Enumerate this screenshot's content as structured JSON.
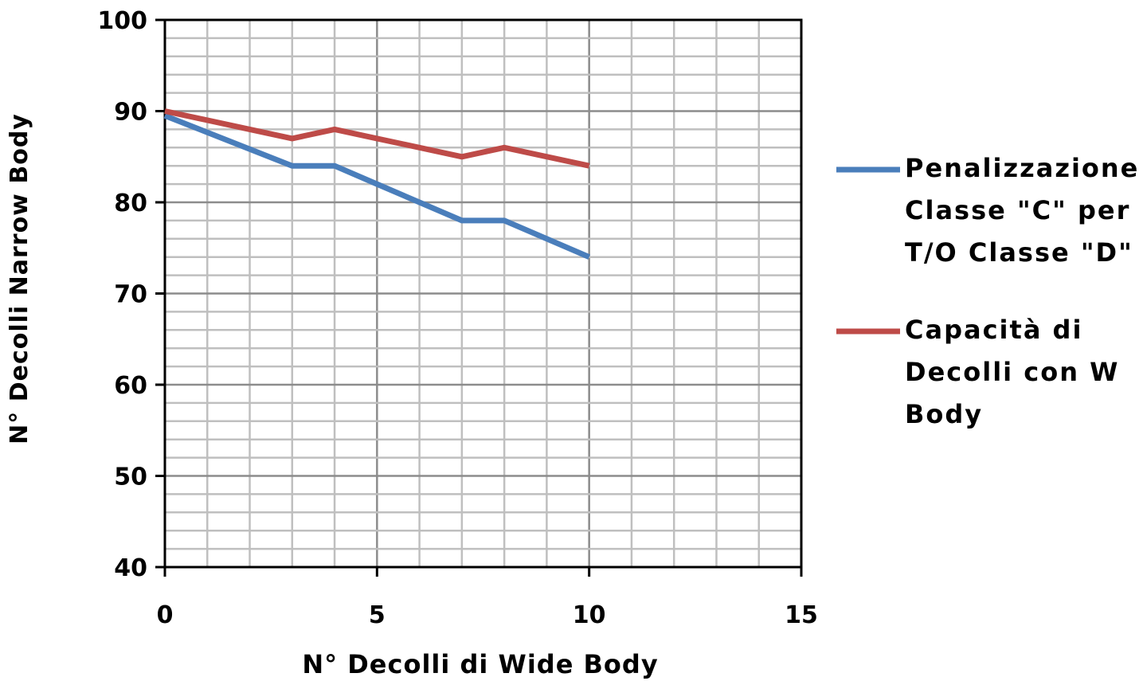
{
  "chart_data": {
    "type": "line",
    "title": "",
    "xlabel": "N° Decolli di Wide Body",
    "ylabel": "N° Decolli Narrow Body",
    "xlim": [
      0,
      15
    ],
    "ylim": [
      40,
      100
    ],
    "x_ticks": [
      "0",
      "5",
      "10",
      "15"
    ],
    "y_ticks": [
      "40",
      "50",
      "60",
      "70",
      "80",
      "90",
      "100"
    ],
    "minor_x_step": 1,
    "minor_y_step": 2,
    "grid": true,
    "legend_position": "right",
    "series": [
      {
        "name_lines": [
          "Penalizzazione",
          "Classe \"C\" per i",
          "T/O Classe \"D\""
        ],
        "color": "#4a7ebb",
        "points": [
          [
            0,
            89.5
          ],
          [
            3,
            84
          ],
          [
            4,
            84
          ],
          [
            5,
            82
          ],
          [
            7,
            78
          ],
          [
            8,
            78
          ],
          [
            10,
            74
          ]
        ]
      },
      {
        "name_lines": [
          "Capacità di",
          "Decolli con W",
          "Body"
        ],
        "color": "#be4b48",
        "points": [
          [
            0,
            90
          ],
          [
            2,
            88
          ],
          [
            3,
            87
          ],
          [
            4,
            88
          ],
          [
            5,
            87
          ],
          [
            7,
            85
          ],
          [
            8,
            86
          ],
          [
            10,
            84
          ]
        ]
      }
    ]
  }
}
